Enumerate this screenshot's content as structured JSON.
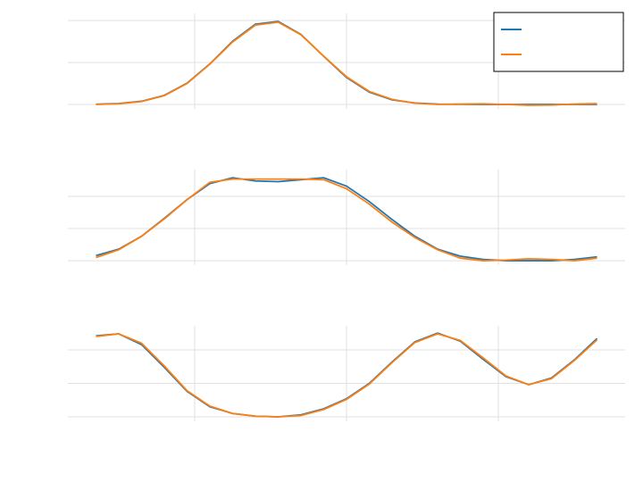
{
  "chart_data": [
    {
      "type": "line",
      "grid": true,
      "legend": "upper right",
      "x": [
        0.35,
        0.5,
        0.65,
        0.8,
        0.95,
        1.1,
        1.25,
        1.4,
        1.55,
        1.7,
        1.85,
        2.0,
        2.15,
        2.3,
        2.45,
        2.6,
        2.75,
        2.9,
        3.05,
        3.2,
        3.35,
        3.5,
        3.65
      ],
      "xlim": [
        0.165,
        3.835
      ],
      "xticks": [
        1,
        2,
        3
      ],
      "ylim": [
        -0.085,
        1.085
      ],
      "yticks": [
        0,
        0.5,
        1
      ],
      "series": [
        {
          "color": "#1f77b4",
          "values": [
            0.002,
            0.011,
            0.038,
            0.108,
            0.253,
            0.483,
            0.753,
            0.956,
            0.989,
            0.834,
            0.573,
            0.321,
            0.147,
            0.055,
            0.017,
            0.004,
            0.001,
            0,
            0,
            0,
            0,
            0,
            0
          ]
        },
        {
          "color": "#ff7f0e",
          "values": [
            0.0,
            0.008,
            0.035,
            0.105,
            0.25,
            0.48,
            0.745,
            0.945,
            0.98,
            0.83,
            0.575,
            0.33,
            0.155,
            0.06,
            0.015,
            0.0,
            0.005,
            0.008,
            0.0,
            -0.01,
            -0.008,
            0.005,
            0.01
          ]
        }
      ]
    },
    {
      "type": "line",
      "grid": true,
      "x": [
        0.35,
        0.5,
        0.65,
        0.8,
        0.95,
        1.1,
        1.25,
        1.4,
        1.55,
        1.7,
        1.85,
        2.0,
        2.15,
        2.3,
        2.45,
        2.6,
        2.75,
        2.9,
        3.05,
        3.2,
        3.35,
        3.5,
        3.65
      ],
      "xlim": [
        0.165,
        3.835
      ],
      "xticks": [
        1,
        2,
        3
      ],
      "ylim": [
        -0.11,
        1.417
      ],
      "yticks": [
        0,
        0.5,
        1
      ],
      "series": [
        {
          "color": "#1f77b4",
          "values": [
            0.08,
            0.18,
            0.38,
            0.66,
            0.95,
            1.2,
            1.29,
            1.24,
            1.23,
            1.26,
            1.29,
            1.16,
            0.92,
            0.64,
            0.38,
            0.18,
            0.07,
            0.02,
            0.0,
            0.0,
            0.0,
            0.02,
            0.06
          ]
        },
        {
          "color": "#ff7f0e",
          "values": [
            0.05,
            0.17,
            0.38,
            0.65,
            0.95,
            1.22,
            1.27,
            1.27,
            1.27,
            1.27,
            1.26,
            1.12,
            0.88,
            0.6,
            0.36,
            0.17,
            0.04,
            0.0,
            0.01,
            0.03,
            0.02,
            0.0,
            0.04
          ]
        }
      ]
    },
    {
      "type": "line",
      "grid": true,
      "x": [
        0.35,
        0.5,
        0.65,
        0.8,
        0.95,
        1.1,
        1.25,
        1.4,
        1.55,
        1.7,
        1.85,
        2.0,
        2.15,
        2.3,
        2.45,
        2.6,
        2.75,
        2.9,
        3.05,
        3.2,
        3.35,
        3.5,
        3.65
      ],
      "xlim": [
        0.165,
        3.835
      ],
      "xticks": [
        1,
        2,
        3
      ],
      "ylim": [
        -0.107,
        1.36
      ],
      "yticks": [
        0,
        0.5,
        1
      ],
      "series": [
        {
          "color": "#1f77b4",
          "values": [
            1.21,
            1.24,
            1.08,
            0.74,
            0.38,
            0.15,
            0.05,
            0.01,
            0.0,
            0.03,
            0.12,
            0.27,
            0.5,
            0.82,
            1.12,
            1.25,
            1.13,
            0.86,
            0.6,
            0.48,
            0.58,
            0.85,
            1.17
          ]
        },
        {
          "color": "#ff7f0e",
          "values": [
            1.2,
            1.24,
            1.1,
            0.76,
            0.39,
            0.16,
            0.05,
            0.01,
            0.0,
            0.02,
            0.11,
            0.26,
            0.49,
            0.81,
            1.11,
            1.24,
            1.14,
            0.88,
            0.61,
            0.48,
            0.57,
            0.84,
            1.15
          ]
        }
      ]
    }
  ]
}
